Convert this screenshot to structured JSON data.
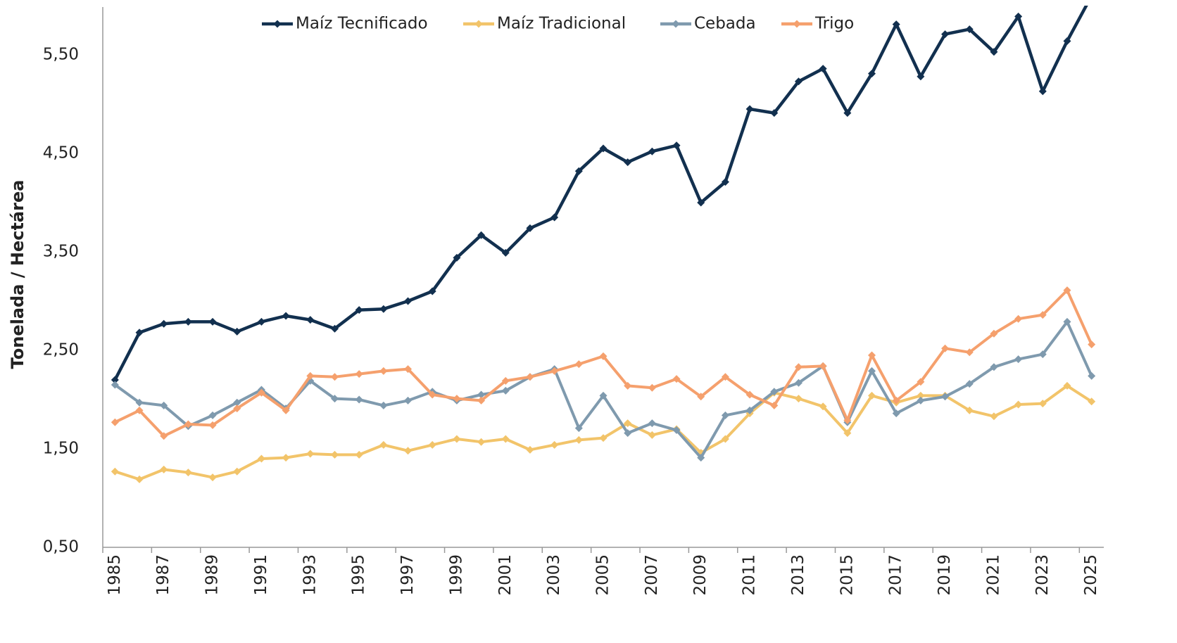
{
  "chart_data": {
    "type": "line",
    "y_label": "Tonelada / Hectárea",
    "categories": [
      "1985",
      null,
      "1987",
      null,
      "1989",
      null,
      "1991",
      null,
      "1993",
      null,
      "1995",
      null,
      "1997",
      null,
      "1999",
      null,
      "2001",
      null,
      "2003",
      null,
      "2005",
      null,
      "2007",
      null,
      "2009",
      null,
      "2011",
      null,
      "2013",
      null,
      "2015",
      null,
      "2017",
      null,
      "2019",
      null,
      "2021",
      null,
      "2023",
      null,
      "2025"
    ],
    "series": [
      {
        "name": "Maíz Tecnificado",
        "color": "#12304f",
        "values": [
          2.2,
          2.68,
          2.77,
          2.79,
          2.79,
          2.69,
          2.79,
          2.85,
          2.81,
          2.72,
          2.91,
          2.92,
          3.0,
          3.1,
          3.44,
          3.67,
          3.49,
          3.74,
          3.85,
          4.32,
          4.55,
          4.41,
          4.52,
          4.58,
          4.0,
          4.21,
          4.95,
          4.91,
          5.23,
          5.36,
          4.91,
          5.31,
          5.81,
          5.28,
          5.71,
          5.76,
          5.53,
          5.89,
          5.13,
          5.64,
          6.1
        ]
      },
      {
        "name": "Maíz Tradicional",
        "color": "#f2c46a",
        "values": [
          1.27,
          1.19,
          1.29,
          1.26,
          1.21,
          1.27,
          1.4,
          1.41,
          1.45,
          1.44,
          1.44,
          1.54,
          1.48,
          1.54,
          1.6,
          1.57,
          1.6,
          1.49,
          1.54,
          1.59,
          1.61,
          1.76,
          1.64,
          1.7,
          1.46,
          1.6,
          1.86,
          2.07,
          2.01,
          1.93,
          1.66,
          2.04,
          1.97,
          2.04,
          2.04,
          1.89,
          1.83,
          1.95,
          1.96,
          2.14,
          1.98
        ]
      },
      {
        "name": "Cebada",
        "color": "#7f9aae",
        "values": [
          2.15,
          1.97,
          1.94,
          1.73,
          1.84,
          1.97,
          2.1,
          1.91,
          2.19,
          2.01,
          2.0,
          1.94,
          1.99,
          2.08,
          1.99,
          2.05,
          2.09,
          2.23,
          2.31,
          1.71,
          2.04,
          1.66,
          1.76,
          1.69,
          1.41,
          1.84,
          1.89,
          2.08,
          2.17,
          2.34,
          1.77,
          2.29,
          1.86,
          1.99,
          2.03,
          2.16,
          2.33,
          2.41,
          2.46,
          2.79,
          2.24
        ]
      },
      {
        "name": "Trigo",
        "color": "#f5a06d",
        "values": [
          1.77,
          1.89,
          1.63,
          1.75,
          1.74,
          1.91,
          2.07,
          1.89,
          2.24,
          2.23,
          2.26,
          2.29,
          2.31,
          2.05,
          2.01,
          1.99,
          2.19,
          2.23,
          2.29,
          2.36,
          2.44,
          2.14,
          2.12,
          2.21,
          2.03,
          2.23,
          2.05,
          1.94,
          2.33,
          2.34,
          1.79,
          2.45,
          1.99,
          2.18,
          2.52,
          2.48,
          2.67,
          2.82,
          2.86,
          3.11,
          2.56
        ]
      }
    ],
    "ylim": [
      0.5,
      6.0
    ],
    "yticks": [
      {
        "value": 0.5,
        "label": "0,50"
      },
      {
        "value": 1.5,
        "label": "1,50"
      },
      {
        "value": 2.5,
        "label": "2,50"
      },
      {
        "value": 3.5,
        "label": "3,50"
      },
      {
        "value": 4.5,
        "label": "4,50"
      },
      {
        "value": 5.5,
        "label": "5,50"
      }
    ],
    "grid": false,
    "legend": "top"
  }
}
